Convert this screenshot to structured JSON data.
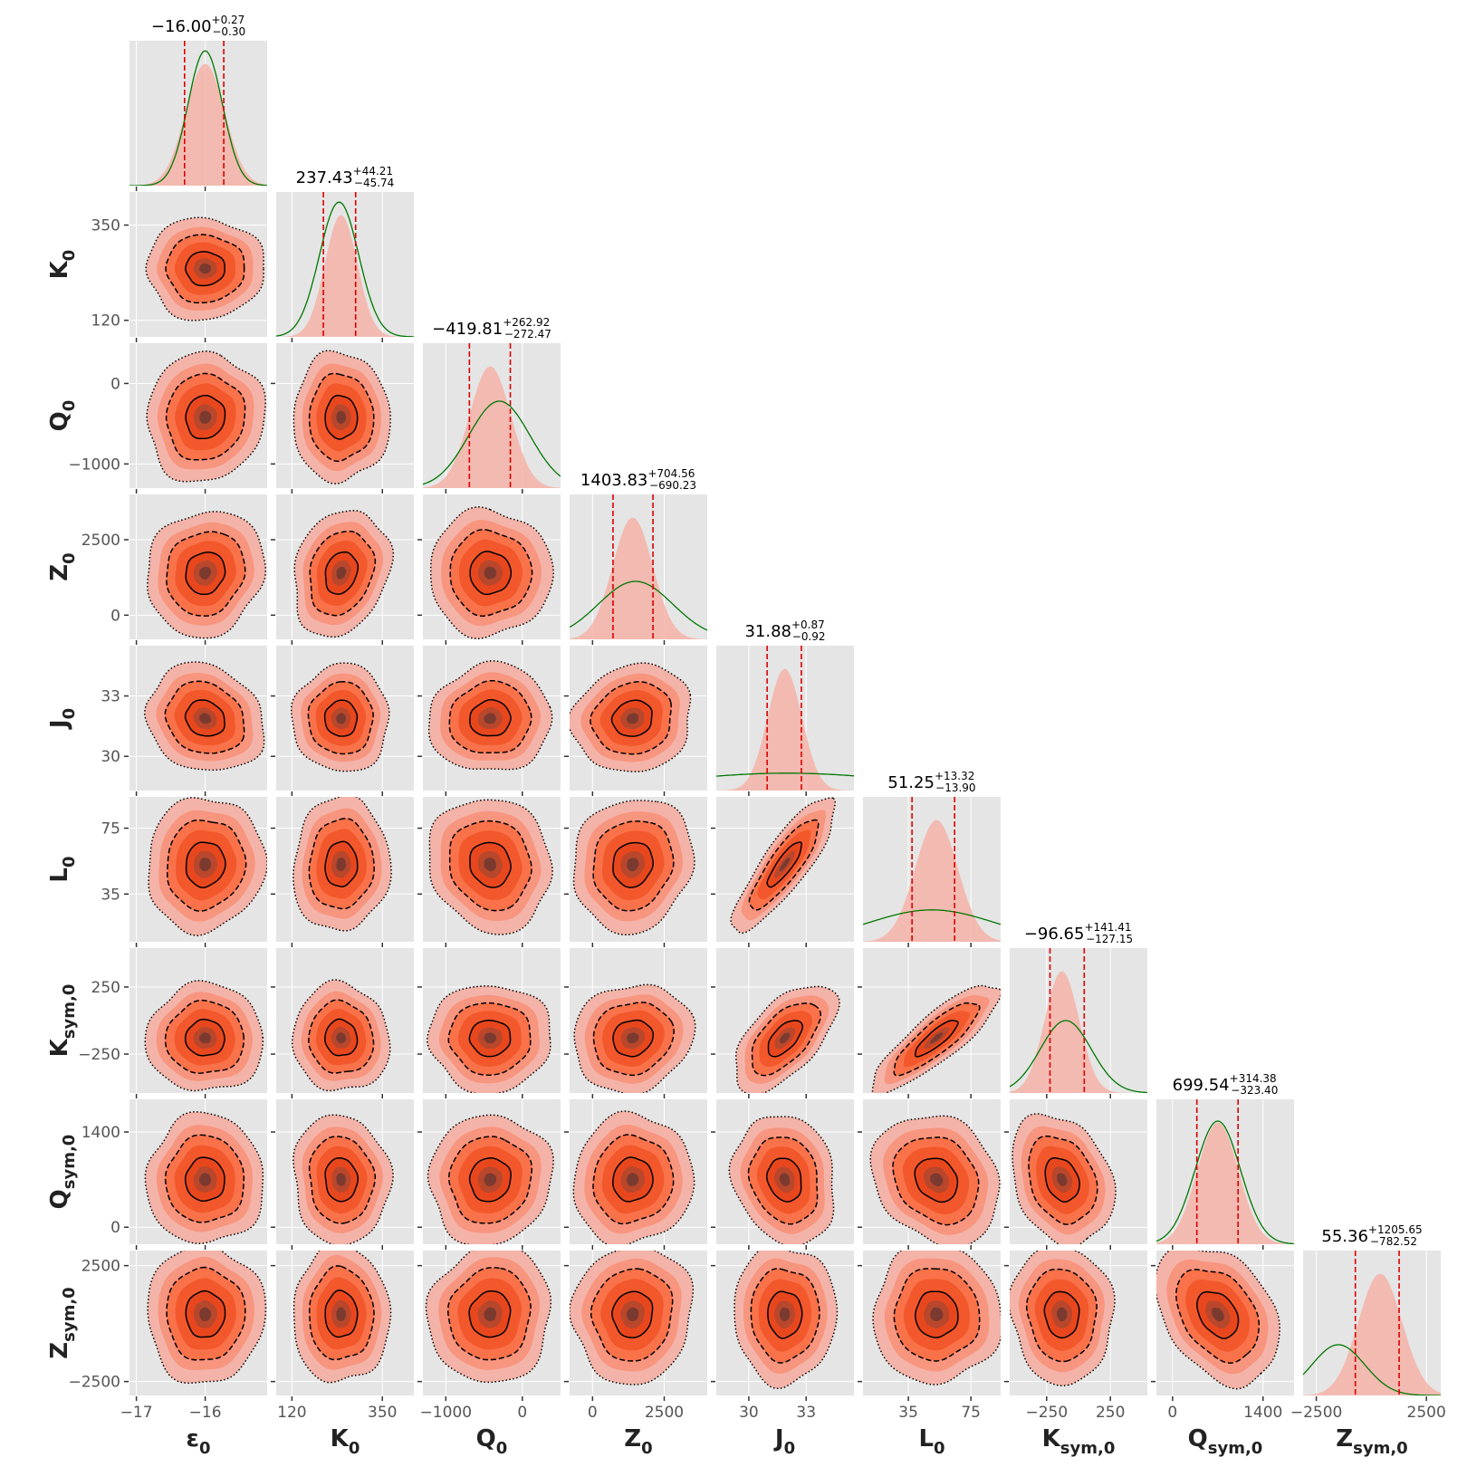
{
  "colors": {
    "panel_bg": "#e5e5e5",
    "grid": "#ffffff",
    "fill_light": "#f4b3a8",
    "fill_mid": "#f9724a",
    "fill_dark": "#e8471e",
    "fill_core": "#7a3a30",
    "contour": "#000000",
    "quantile_line": "#dd0000",
    "prior_line": "#007700",
    "tick_text": "#555555"
  },
  "chart_data": {
    "type": "corner",
    "params": [
      {
        "base": "K",
        "sub": "0",
        "ticks": [
          120,
          350
        ],
        "range": [
          80,
          430
        ],
        "peak": 245,
        "lo": 200,
        "hi": 282,
        "title": {
          "value": "237.43",
          "plus": "+44.21",
          "minus": "−45.74"
        }
      },
      {
        "base": "Q",
        "sub": "0",
        "ticks": [
          -1000,
          0
        ],
        "range": [
          -1300,
          500
        ],
        "peak": -420,
        "lo": -692,
        "hi": -157,
        "title": {
          "value": "−419.81",
          "plus": "+262.92",
          "minus": "−272.47"
        }
      },
      {
        "base": "Z",
        "sub": "0",
        "ticks": [
          0,
          2500
        ],
        "range": [
          -800,
          4000
        ],
        "peak": 1400,
        "lo": 714,
        "hi": 2108,
        "title": {
          "value": "1403.83",
          "plus": "+704.56",
          "minus": "−690.23"
        }
      },
      {
        "base": "J",
        "sub": "0",
        "ticks": [
          30,
          33
        ],
        "range": [
          28.3,
          35.5
        ],
        "peak": 31.88,
        "lo": 30.96,
        "hi": 32.75,
        "title": {
          "value": "31.88",
          "plus": "+0.87",
          "minus": "−0.92"
        }
      },
      {
        "base": "L",
        "sub": "0",
        "ticks": [
          35,
          75
        ],
        "range": [
          6,
          94
        ],
        "peak": 53,
        "lo": 37.35,
        "hi": 64.57,
        "title": {
          "value": "51.25",
          "plus": "+13.32",
          "minus": "−13.90"
        }
      },
      {
        "base": "K",
        "sub": "sym,0",
        "ticks": [
          -250,
          250
        ],
        "range": [
          -540,
          540
        ],
        "peak": -130,
        "lo": -223.8,
        "hi": 44.76,
        "title": {
          "value": "−96.65",
          "plus": "+141.41",
          "minus": "−127.15"
        }
      },
      {
        "base": "Q",
        "sub": "sym,0",
        "ticks": [
          0,
          1400
        ],
        "range": [
          -250,
          1880
        ],
        "peak": 700,
        "lo": 376.14,
        "hi": 1013.92,
        "title": {
          "value": "699.54",
          "plus": "+314.38",
          "minus": "−323.40"
        }
      },
      {
        "base": "Z",
        "sub": "sym,0",
        "ticks": [
          -2500,
          2500
        ],
        "range": [
          -3100,
          3150
        ],
        "peak": 400,
        "lo": -727.16,
        "hi": 1261.01,
        "title": {
          "value": "55.36",
          "plus": "+1205.65",
          "minus": "−782.52"
        }
      }
    ],
    "first_param": {
      "base": "ε",
      "sub": "0",
      "ticks": [
        -17,
        -16
      ],
      "range": [
        -17.1,
        -15.1
      ],
      "peak": -16.0,
      "lo": -16.3,
      "hi": -15.73,
      "title": {
        "value": "−16.00",
        "plus": "+0.27",
        "minus": "−0.30"
      }
    },
    "correlations": [
      [
        0,
        0.05,
        0.1
      ],
      [
        0.05,
        0,
        0.2
      ],
      [
        0.1,
        0.2,
        0,
        -0.95
      ],
      [
        -0.15,
        0,
        0.05,
        0.1
      ],
      [
        0.05,
        0.05,
        -0.1,
        0.1,
        0.85
      ],
      [
        0,
        -0.05,
        0,
        0.1,
        0.6,
        0.85
      ],
      [
        0,
        -0.05,
        0.05,
        0.05,
        -0.15,
        -0.2,
        -0.25
      ],
      [
        0,
        0,
        0.05,
        0.05,
        0,
        0,
        -0.05,
        -0.35
      ]
    ],
    "priors": [
      {
        "mu": -16.0,
        "sigma": 0.25
      },
      {
        "mu": 240,
        "sigma": 50
      },
      {
        "mu": -300,
        "sigma": 400
      },
      {
        "mu": 1500,
        "sigma": 1300
      },
      {
        "mu": 32,
        "sigma": 6
      },
      {
        "mu": 50,
        "sigma": 40
      },
      {
        "mu": -100,
        "sigma": 200
      },
      {
        "mu": 700,
        "sigma": 350
      },
      {
        "mu": -1500,
        "sigma": 1200
      }
    ],
    "prior_scale": [
      0.93,
      0.93,
      0.6,
      0.4,
      0.12,
      0.22,
      0.5,
      0.85,
      0.35
    ]
  }
}
